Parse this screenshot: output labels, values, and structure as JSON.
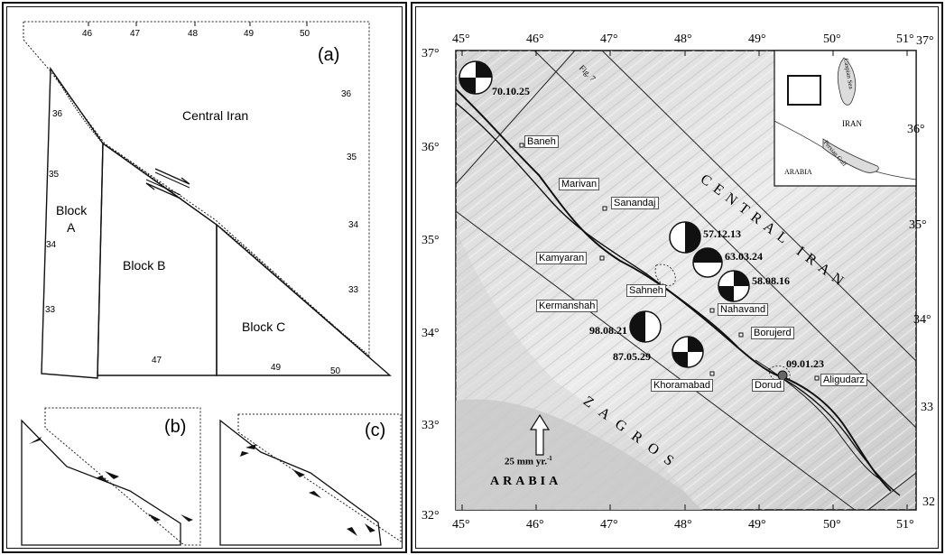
{
  "left_figure": {
    "panel_a": {
      "label": "(a)",
      "top_ticks": [
        "46",
        "47",
        "48",
        "49",
        "50"
      ],
      "bottom_ticks": [
        "47",
        "49",
        "50"
      ],
      "left_ticks": [
        "36",
        "35",
        "34",
        "33"
      ],
      "right_ticks": [
        "36",
        "35",
        "34",
        "33"
      ],
      "region_label": "Central Iran",
      "block_a_line1": "Block",
      "block_a_line2": "A",
      "block_b": "Block B",
      "block_c": "Block C"
    },
    "panel_b": {
      "label": "(b)"
    },
    "panel_c": {
      "label": "(c)"
    }
  },
  "map": {
    "top_lon_ticks": [
      "45°",
      "46°",
      "47°",
      "48°",
      "49°",
      "50°",
      "51°"
    ],
    "bottom_lon_ticks": [
      "45°",
      "46°",
      "47°",
      "48°",
      "49°",
      "50°",
      "51°"
    ],
    "left_lat_ticks": [
      "37°",
      "36°",
      "35°",
      "34°",
      "33°",
      "32°"
    ],
    "right_lat_ticks": [
      "37°",
      "36°",
      "35°",
      "34°",
      "33",
      "32"
    ],
    "fig_ref": "Fig. 7",
    "region_central_iran": "CENTRAL IRAN",
    "region_zagros": "ZAGROS",
    "region_arabia": "ARABIA",
    "velocity_label": "25 mm yr.",
    "velocity_exp": "-1",
    "towns": [
      "Baneh",
      "Marivan",
      "Sanandaj",
      "Kamyaran",
      "Sahneh",
      "Kermanshah",
      "Nahavand",
      "Borujerd",
      "Khoramabad",
      "Dorud",
      "Aligudarz"
    ],
    "events": [
      "70.10.25",
      "57.12.13",
      "63.03.24",
      "58.08.16",
      "98.08.21",
      "87.05.29",
      "09.01.23"
    ],
    "inset": {
      "caspian": "Caspian Sea",
      "iran": "IRAN",
      "persian_gulf": "Persian Gulf",
      "arabia": "ARABIA"
    }
  }
}
